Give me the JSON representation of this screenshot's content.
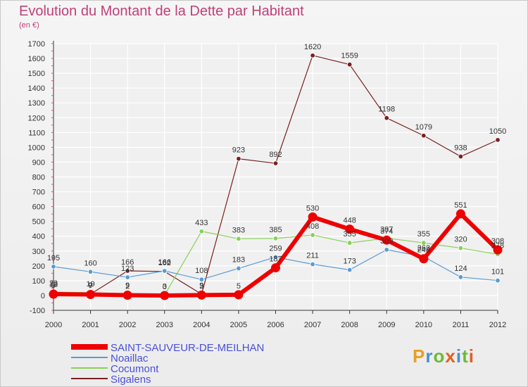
{
  "title": "Evolution du Montant de la Dette par Habitant",
  "subtitle": "(en €)",
  "logo": "Proxiti",
  "logo_colors": [
    "#e8a020",
    "#4a90d0",
    "#70b838",
    "#e06020",
    "#4a90d0",
    "#70b838",
    "#e06020"
  ],
  "chart_data": {
    "type": "line",
    "x": [
      "2000",
      "2001",
      "2002",
      "2003",
      "2004",
      "2005",
      "2006",
      "2007",
      "2008",
      "2009",
      "2010",
      "2011",
      "2012"
    ],
    "ylim": [
      -100,
      1700
    ],
    "yticks": [
      "-100",
      "0",
      "100",
      "200",
      "300",
      "400",
      "500",
      "600",
      "700",
      "800",
      "900",
      "1000",
      "1100",
      "1200",
      "1300",
      "1400",
      "1500",
      "1600",
      "1700"
    ],
    "grid": true,
    "legend_position": "bottom-left",
    "series": [
      {
        "name": "SAINT-SAUVEUR-DE-MEILHAN",
        "color": "#ee0000",
        "values": [
          9,
          7,
          2,
          0,
          3,
          5,
          187,
          530,
          448,
          374,
          248,
          551,
          308
        ],
        "labels": [
          "9",
          "7",
          "2",
          "0",
          "3",
          "5",
          "187",
          "530",
          "448",
          "374",
          "248",
          "551",
          "308"
        ]
      },
      {
        "name": "Noaillac",
        "color": "#5a9bd4",
        "values": [
          195,
          160,
          123,
          166,
          108,
          183,
          259,
          211,
          173,
          309,
          262,
          124,
          101
        ],
        "labels": [
          "195",
          "160",
          "123",
          "166",
          "108",
          "183",
          "259",
          "211",
          "173",
          "309",
          "262",
          "124",
          "101"
        ]
      },
      {
        "name": "Cocumont",
        "color": "#88d058",
        "values": [
          23,
          19,
          9,
          3,
          433,
          383,
          385,
          408,
          355,
          387,
          355,
          320,
          278
        ],
        "labels": [
          "23",
          "19",
          "9",
          "3",
          "433",
          "383",
          "385",
          "408",
          "355",
          "387",
          "355",
          "320",
          "278"
        ]
      },
      {
        "name": "Sigalens",
        "color": "#7a2020",
        "values": [
          13,
          9,
          166,
          162,
          9,
          923,
          892,
          1620,
          1559,
          1198,
          1079,
          938,
          1050
        ],
        "labels": [
          "13",
          "9",
          "166",
          "162",
          "9",
          "923",
          "892",
          "1620",
          "1559",
          "1198",
          "1079",
          "938",
          "1050"
        ]
      }
    ]
  }
}
